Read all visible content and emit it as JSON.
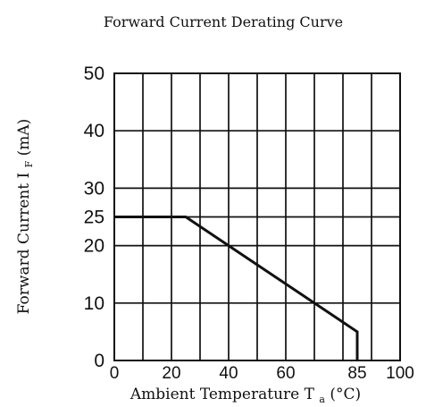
{
  "chart_data": {
    "type": "line",
    "title": "Forward Current Derating Curve",
    "xlabel": "Ambient Temperature",
    "xlabel_symbol": "T",
    "xlabel_subscript": "a",
    "xlabel_unit": "(°C)",
    "ylabel": "Forward Current",
    "ylabel_symbol": "I",
    "ylabel_subscript": "F",
    "ylabel_unit": "(mA)",
    "xlim": [
      0,
      100
    ],
    "ylim": [
      0,
      50
    ],
    "x_ticks": [
      0,
      20,
      40,
      60,
      85,
      100
    ],
    "y_ticks": [
      0,
      10,
      20,
      25,
      30,
      40,
      50
    ],
    "x_grid": [
      10,
      20,
      30,
      40,
      50,
      60,
      70,
      80,
      90
    ],
    "y_grid": [
      10,
      20,
      25,
      30,
      40
    ],
    "grid": true,
    "series": [
      {
        "x": [
          0,
          25,
          85,
          85
        ],
        "y": [
          25,
          25,
          5,
          0
        ]
      }
    ]
  },
  "colors": {
    "axis": "#111111",
    "grid": "#111111",
    "line": "#111111",
    "text": "#111111"
  }
}
